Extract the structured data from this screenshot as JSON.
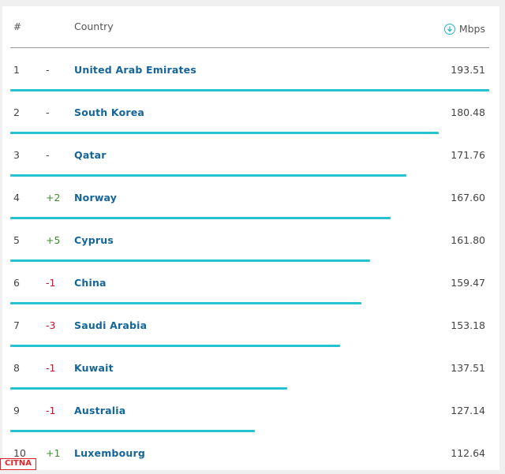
{
  "header": {
    "rank": "#",
    "country": "Country",
    "unit": "Mbps",
    "unit_icon": "download-circle-icon"
  },
  "rows": [
    {
      "rank": "1",
      "change": "-",
      "trend": "none",
      "country": "United Arab Emirates",
      "speed": "193.51",
      "value": 193.51
    },
    {
      "rank": "2",
      "change": "-",
      "trend": "none",
      "country": "South Korea",
      "speed": "180.48",
      "value": 180.48
    },
    {
      "rank": "3",
      "change": "-",
      "trend": "none",
      "country": "Qatar",
      "speed": "171.76",
      "value": 171.76
    },
    {
      "rank": "4",
      "change": "+2",
      "trend": "up",
      "country": "Norway",
      "speed": "167.60",
      "value": 167.6
    },
    {
      "rank": "5",
      "change": "+5",
      "trend": "up",
      "country": "Cyprus",
      "speed": "161.80",
      "value": 161.8
    },
    {
      "rank": "6",
      "change": "-1",
      "trend": "down",
      "country": "China",
      "speed": "159.47",
      "value": 159.47
    },
    {
      "rank": "7",
      "change": "-3",
      "trend": "down",
      "country": "Saudi Arabia",
      "speed": "153.18",
      "value": 153.18
    },
    {
      "rank": "8",
      "change": "-1",
      "trend": "down",
      "country": "Kuwait",
      "speed": "137.51",
      "value": 137.51
    },
    {
      "rank": "9",
      "change": "-1",
      "trend": "down",
      "country": "Australia",
      "speed": "127.14",
      "value": 127.14
    },
    {
      "rank": "10",
      "change": "+1",
      "trend": "up",
      "country": "Luxembourg",
      "speed": "112.64",
      "value": 112.64
    }
  ],
  "colors": {
    "bar": "#25c2cf",
    "link": "#14659a",
    "up": "#3c8f2f",
    "down": "#c8102e"
  },
  "watermark": {
    "text": "CITNA"
  }
}
